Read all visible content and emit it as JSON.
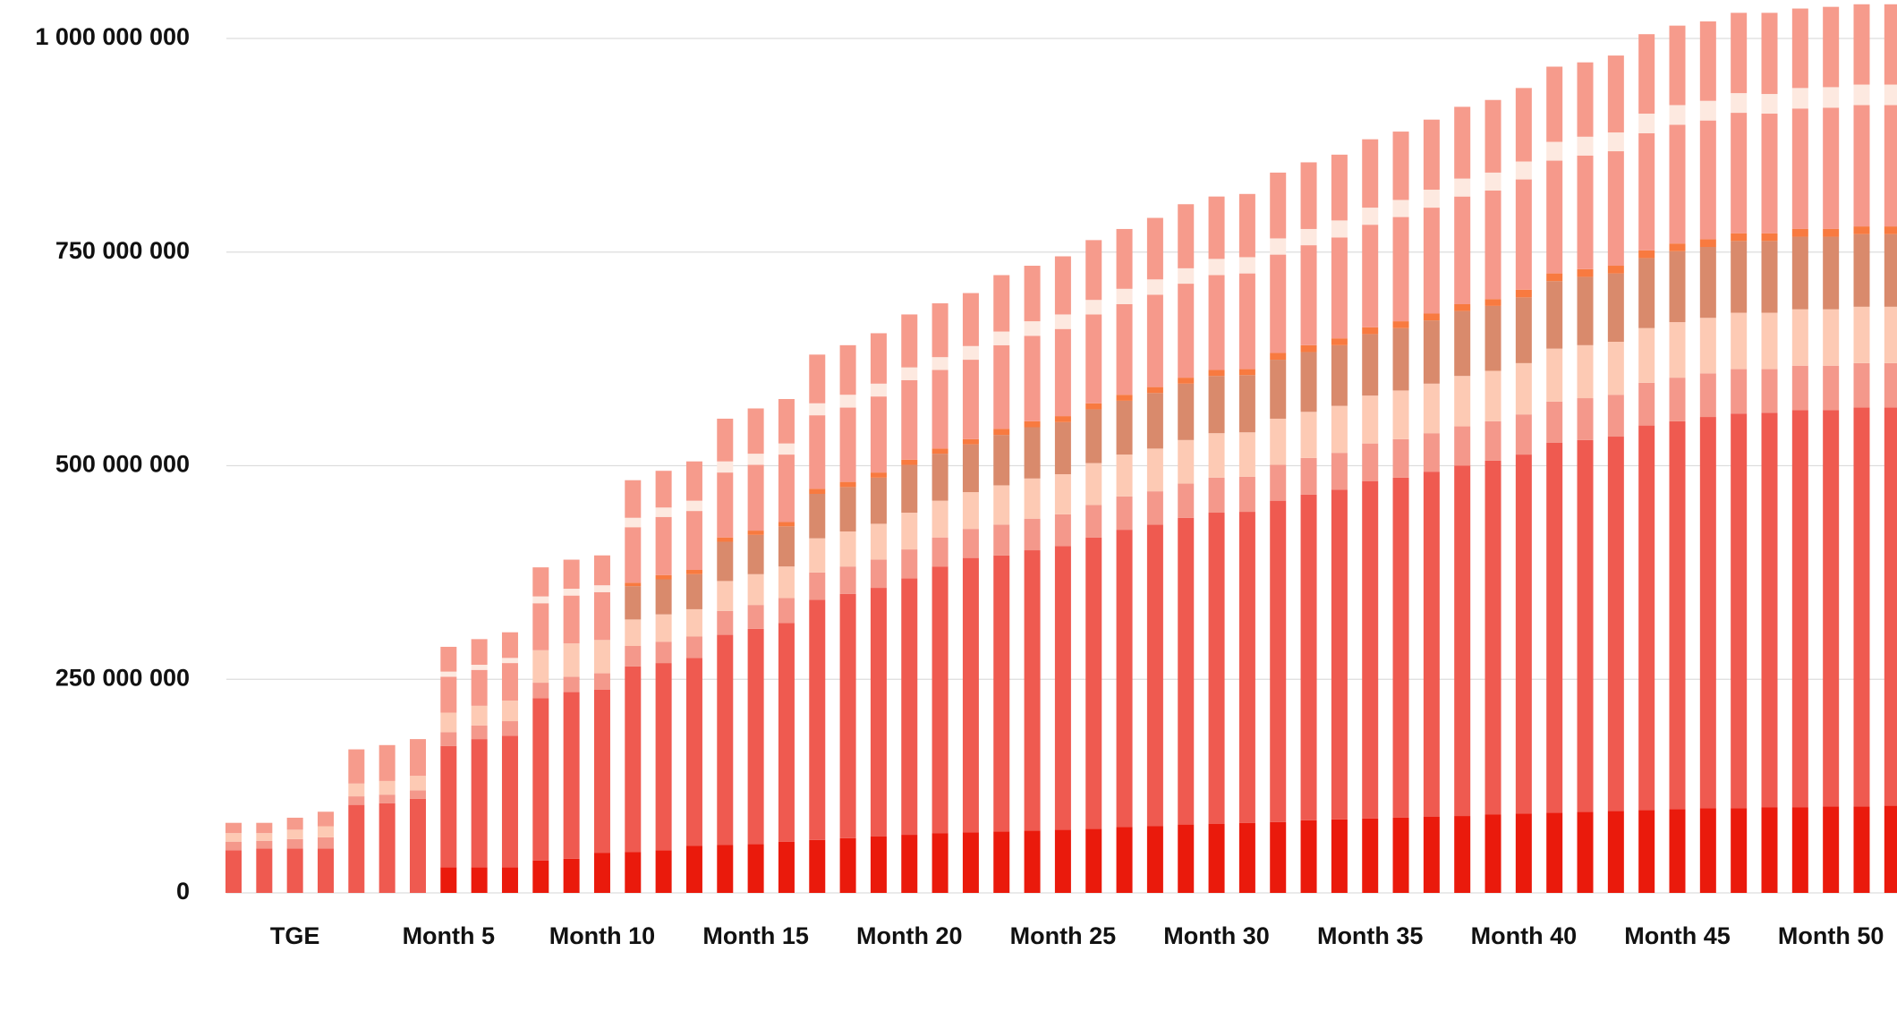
{
  "chart_data": {
    "type": "stacked_bar",
    "categories": [
      null,
      null,
      "TGE",
      null,
      null,
      null,
      null,
      "Month 5",
      null,
      null,
      null,
      null,
      "Month 10",
      null,
      null,
      null,
      null,
      "Month 15",
      null,
      null,
      null,
      null,
      "Month 20",
      null,
      null,
      null,
      null,
      "Month 25",
      null,
      null,
      null,
      null,
      "Month 30",
      null,
      null,
      null,
      null,
      "Month 35",
      null,
      null,
      null,
      null,
      "Month 40",
      null,
      null,
      null,
      null,
      "Month 45",
      null,
      null,
      null,
      null,
      "Month 50",
      null,
      null
    ],
    "ylim": [
      0,
      1045000000
    ],
    "yticks": [
      0,
      {
        "value": 250000000,
        "label": "250 000 000"
      },
      {
        "value": 500000000,
        "label": "500 000 000"
      },
      {
        "value": 750000000,
        "label": "750 000 000"
      },
      {
        "value": 1000000000,
        "label": "1 000 000 000"
      }
    ],
    "grid": true,
    "series": [
      {
        "color": "#ea1a0c",
        "values": [
          0,
          0,
          0,
          0,
          0,
          0,
          0,
          30000000,
          30000000,
          30000000,
          38000000,
          40000000,
          47000000,
          48000000,
          50000000,
          55000000,
          56000000,
          57000000,
          60000000,
          62000000,
          64000000,
          66000000,
          68000000,
          70000000,
          71000000,
          72000000,
          73000000,
          74000000,
          75000000,
          77000000,
          78000000,
          80000000,
          81000000,
          82000000,
          83000000,
          85000000,
          86000000,
          87000000,
          88000000,
          89000000,
          90000000,
          92000000,
          93000000,
          94000000,
          95000000,
          96000000,
          97000000,
          98000000,
          99000000,
          99000000,
          100000000,
          100000000,
          101000000,
          101000000,
          102000000
        ]
      },
      {
        "color": "#ef5a50",
        "values": [
          50000000,
          52000000,
          52000000,
          52000000,
          103000000,
          105000000,
          110000000,
          142000000,
          150000000,
          154000000,
          190000000,
          195000000,
          191000000,
          217000000,
          219000000,
          220000000,
          246000000,
          252000000,
          256000000,
          281000000,
          286000000,
          291000000,
          300000000,
          312000000,
          321000000,
          323000000,
          328000000,
          332000000,
          341000000,
          348000000,
          353000000,
          359000000,
          364000000,
          364000000,
          376000000,
          381000000,
          386000000,
          395000000,
          398000000,
          404000000,
          410000000,
          414000000,
          420000000,
          433000000,
          435000000,
          438000000,
          450000000,
          454000000,
          458000000,
          462000000,
          462000000,
          465000000,
          464000000,
          467000000,
          466000000
        ]
      },
      {
        "color": "#f4988b",
        "values": [
          10000000,
          9000000,
          11000000,
          13000000,
          10000000,
          10000000,
          10000000,
          16000000,
          16000000,
          17000000,
          18000000,
          18000000,
          19000000,
          24000000,
          25000000,
          25000000,
          28000000,
          28000000,
          29000000,
          32000000,
          32000000,
          33000000,
          34000000,
          34000000,
          34000000,
          36000000,
          37000000,
          37000000,
          38000000,
          39000000,
          39000000,
          40000000,
          41000000,
          41000000,
          42000000,
          43000000,
          43000000,
          44000000,
          45000000,
          45000000,
          46000000,
          46000000,
          47000000,
          48000000,
          49000000,
          49000000,
          50000000,
          51000000,
          51000000,
          52000000,
          51000000,
          52000000,
          52000000,
          52000000,
          52000000
        ]
      },
      {
        "color": "#fdcab4",
        "values": [
          10000000,
          9000000,
          11000000,
          13000000,
          15000000,
          16000000,
          17000000,
          23000000,
          23000000,
          24000000,
          38000000,
          39000000,
          39000000,
          31000000,
          32000000,
          32000000,
          35000000,
          36000000,
          37000000,
          40000000,
          41000000,
          42000000,
          43000000,
          43000000,
          43000000,
          46000000,
          47000000,
          47000000,
          49000000,
          49000000,
          50000000,
          51000000,
          52000000,
          52000000,
          54000000,
          54000000,
          55000000,
          56000000,
          57000000,
          58000000,
          59000000,
          59000000,
          60000000,
          62000000,
          62000000,
          62000000,
          64000000,
          65000000,
          65000000,
          66000000,
          66000000,
          66000000,
          66000000,
          66000000,
          66000000
        ]
      },
      {
        "color": "#d98a6c",
        "values": [
          0,
          0,
          0,
          0,
          0,
          0,
          0,
          0,
          0,
          0,
          0,
          0,
          0,
          39000000,
          41000000,
          41000000,
          46000000,
          46000000,
          47000000,
          52000000,
          52000000,
          54000000,
          56000000,
          55000000,
          56000000,
          59000000,
          60000000,
          61000000,
          63000000,
          63000000,
          65000000,
          66000000,
          67000000,
          67000000,
          69000000,
          70000000,
          71000000,
          72000000,
          73000000,
          74000000,
          76000000,
          76000000,
          77000000,
          79000000,
          80000000,
          80000000,
          82000000,
          83000000,
          83000000,
          84000000,
          84000000,
          85000000,
          85000000,
          85000000,
          85000000
        ]
      },
      {
        "color": "#f87a40",
        "values": [
          0,
          0,
          0,
          0,
          0,
          0,
          0,
          0,
          0,
          0,
          0,
          0,
          0,
          4000000,
          5000000,
          5000000,
          5000000,
          5000000,
          5000000,
          6000000,
          6000000,
          6000000,
          6000000,
          6000000,
          6000000,
          7000000,
          7000000,
          7000000,
          7000000,
          7000000,
          7000000,
          7000000,
          7000000,
          7000000,
          8000000,
          8000000,
          8000000,
          8000000,
          8000000,
          8000000,
          8000000,
          8000000,
          9000000,
          9000000,
          9000000,
          9000000,
          9000000,
          9000000,
          9000000,
          9000000,
          9000000,
          9000000,
          9000000,
          9000000,
          9000000
        ]
      },
      {
        "color": "#f6998b",
        "values": [
          0,
          0,
          0,
          0,
          0,
          0,
          0,
          42000000,
          42000000,
          44000000,
          55000000,
          56000000,
          56000000,
          65000000,
          68000000,
          69000000,
          76000000,
          77000000,
          79000000,
          86000000,
          87000000,
          89000000,
          93000000,
          92000000,
          93000000,
          98000000,
          100000000,
          102000000,
          104000000,
          106000000,
          108000000,
          110000000,
          111000000,
          112000000,
          115000000,
          117000000,
          118000000,
          120000000,
          122000000,
          124000000,
          126000000,
          127000000,
          129000000,
          132000000,
          133000000,
          134000000,
          137000000,
          139000000,
          139000000,
          141000000,
          140000000,
          141000000,
          142000000,
          142000000,
          142000000
        ]
      },
      {
        "color": "#fde9e0",
        "values": [
          0,
          0,
          0,
          0,
          0,
          0,
          0,
          6000000,
          6000000,
          6000000,
          8000000,
          8000000,
          8000000,
          11000000,
          11000000,
          12000000,
          13000000,
          13000000,
          13000000,
          14000000,
          15000000,
          15000000,
          15000000,
          15000000,
          16000000,
          16000000,
          17000000,
          17000000,
          17000000,
          18000000,
          18000000,
          18000000,
          19000000,
          19000000,
          19000000,
          19000000,
          20000000,
          20000000,
          20000000,
          21000000,
          21000000,
          21000000,
          21000000,
          22000000,
          22000000,
          22000000,
          23000000,
          23000000,
          23000000,
          23000000,
          23000000,
          24000000,
          24000000,
          24000000,
          24000000
        ]
      },
      {
        "color": "#f69b8c",
        "values": [
          12000000,
          12000000,
          14000000,
          17000000,
          40000000,
          42000000,
          43000000,
          29000000,
          30000000,
          30000000,
          34000000,
          34000000,
          35000000,
          44000000,
          43000000,
          46000000,
          50000000,
          53000000,
          52000000,
          57000000,
          58000000,
          59000000,
          62000000,
          63000000,
          62000000,
          66000000,
          65000000,
          68000000,
          70000000,
          70000000,
          72000000,
          75000000,
          73000000,
          74000000,
          77000000,
          78000000,
          77000000,
          80000000,
          80000000,
          82000000,
          84000000,
          85000000,
          86000000,
          88000000,
          87000000,
          90000000,
          93000000,
          93000000,
          93000000,
          94000000,
          95000000,
          93000000,
          94000000,
          94000000,
          94000000
        ]
      }
    ]
  }
}
